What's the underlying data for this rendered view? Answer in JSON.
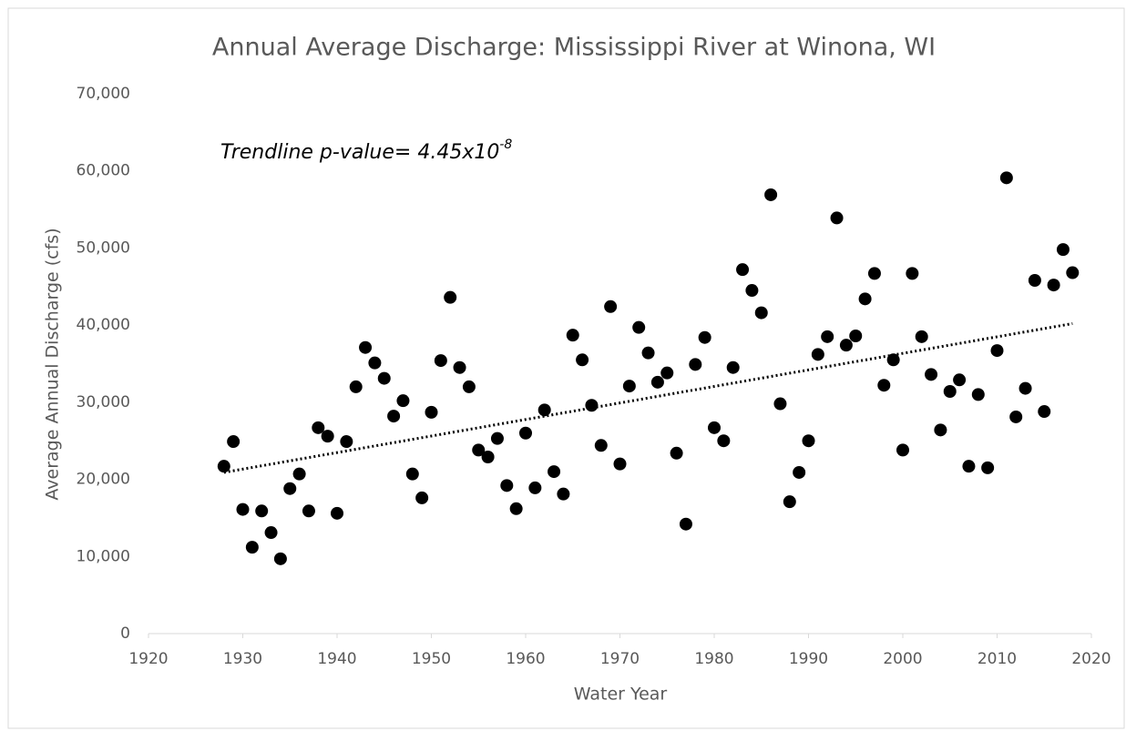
{
  "chart_data": {
    "type": "scatter",
    "title": "Annual Average Discharge: Mississippi River at Winona, WI",
    "x_label": "Water Year",
    "y_label": "Average Annual Discharge (cfs)",
    "annotation": {
      "text": "Trendline p-value= 4.45x10",
      "superscript": "-8"
    },
    "series": [
      {
        "name": "Annual Average Discharge",
        "color": "#000000",
        "x": [
          1928,
          1929,
          1930,
          1931,
          1932,
          1933,
          1934,
          1935,
          1936,
          1937,
          1938,
          1939,
          1940,
          1941,
          1942,
          1943,
          1944,
          1945,
          1946,
          1947,
          1948,
          1949,
          1950,
          1951,
          1952,
          1953,
          1954,
          1955,
          1956,
          1957,
          1958,
          1959,
          1960,
          1961,
          1962,
          1963,
          1964,
          1965,
          1966,
          1967,
          1968,
          1969,
          1970,
          1971,
          1972,
          1973,
          1974,
          1975,
          1976,
          1977,
          1978,
          1979,
          1980,
          1981,
          1982,
          1983,
          1984,
          1985,
          1986,
          1987,
          1988,
          1989,
          1990,
          1991,
          1992,
          1993,
          1994,
          1995,
          1996,
          1997,
          1998,
          1999,
          2000,
          2001,
          2002,
          2003,
          2004,
          2005,
          2006,
          2007,
          2008,
          2009,
          2010,
          2011,
          2012,
          2013,
          2014,
          2015,
          2016,
          2017,
          2018
        ],
        "values": [
          21700,
          24900,
          16100,
          11200,
          15900,
          13100,
          9700,
          18800,
          20700,
          15900,
          26700,
          25600,
          15600,
          24900,
          32000,
          37100,
          35100,
          33100,
          28200,
          30200,
          20700,
          17600,
          28700,
          35400,
          43600,
          34500,
          32000,
          23800,
          22900,
          25300,
          19200,
          16200,
          26000,
          18900,
          29000,
          21000,
          18100,
          38700,
          35500,
          29600,
          24400,
          42400,
          22000,
          32100,
          39700,
          36400,
          32600,
          33800,
          23400,
          14200,
          34900,
          38400,
          26700,
          25000,
          34500,
          47200,
          44500,
          41600,
          56900,
          29800,
          17100,
          20900,
          25000,
          36200,
          38500,
          53900,
          37400,
          38600,
          43400,
          46700,
          32200,
          35500,
          23800,
          46700,
          38500,
          33600,
          26400,
          31400,
          32900,
          21700,
          31000,
          21500,
          36700,
          59100,
          28100,
          31800,
          45800,
          28800,
          45200,
          49800,
          46800
        ]
      }
    ],
    "trendline": {
      "x": [
        1928,
        2018
      ],
      "values": [
        20900,
        40200
      ],
      "color": "#000000"
    },
    "xlim": [
      1920,
      2020
    ],
    "xticks": [
      1920,
      1930,
      1940,
      1950,
      1960,
      1970,
      1980,
      1990,
      2000,
      2010,
      2020
    ],
    "ylim": [
      0,
      70000
    ],
    "yticks": [
      0,
      {
        "value": 10000,
        "label": "10,000"
      },
      {
        "value": 20000,
        "label": "20,000"
      },
      {
        "value": 30000,
        "label": "30,000"
      },
      {
        "value": 40000,
        "label": "40,000"
      },
      {
        "value": 50000,
        "label": "50,000"
      },
      {
        "value": 60000,
        "label": "60,000"
      },
      {
        "value": 70000,
        "label": "70,000"
      }
    ]
  }
}
